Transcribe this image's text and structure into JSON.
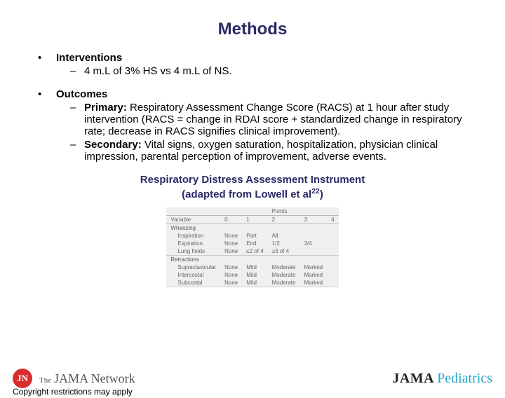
{
  "title": {
    "text": "Methods",
    "color": "#2a2a66",
    "fontsize": 24
  },
  "body_fontsize": 15,
  "bullets": [
    {
      "heading": "Interventions",
      "items": [
        {
          "prefix": "",
          "text": "4 m.L of 3% HS vs 4 m.L of NS."
        }
      ]
    },
    {
      "heading": "Outcomes",
      "items": [
        {
          "prefix": "Primary: ",
          "text": "Respiratory Assessment Change Score (RACS) at 1 hour after study intervention (RACS = change in RDAI score + standardized change in respiratory rate; decrease in RACS signifies clinical improvement)."
        },
        {
          "prefix": "Secondary: ",
          "text": "Vital signs, oxygen saturation, hospitalization, physician clinical impression, parental perception of improvement, adverse events."
        }
      ]
    }
  ],
  "table_caption": {
    "line1": "Respiratory Distress Assessment Instrument",
    "line2_pre": "(adapted from Lowell et al",
    "line2_sup": "22",
    "line2_post": ")",
    "color": "#2a2a66",
    "fontsize": 15
  },
  "rdai_table": {
    "background": "#f0efee",
    "border_color": "#bbbbbb",
    "text_color": "#666666",
    "fontsize": 8,
    "variable_header": "Variable",
    "points_header": "Points",
    "point_cols": [
      "0",
      "1",
      "2",
      "3",
      "4"
    ],
    "sections": [
      {
        "label": "Wheezing",
        "rows": [
          {
            "label": "Inspiration",
            "cells": [
              "None",
              "Part",
              "All",
              "",
              ""
            ]
          },
          {
            "label": "Expiration",
            "cells": [
              "None",
              "End",
              "1/2",
              "3/4",
              ""
            ]
          },
          {
            "label": "Lung fields",
            "cells": [
              "None",
              "≤2 of 4",
              "≥3 of 4",
              "",
              ""
            ]
          }
        ]
      },
      {
        "label": "Retractions",
        "rows": [
          {
            "label": "Supraclavicular",
            "cells": [
              "None",
              "Mild",
              "Moderate",
              "Marked",
              ""
            ]
          },
          {
            "label": "Intercostal",
            "cells": [
              "None",
              "Mild",
              "Moderate",
              "Marked",
              ""
            ]
          },
          {
            "label": "Subcostal",
            "cells": [
              "None",
              "Mild",
              "Moderate",
              "Marked",
              ""
            ]
          }
        ]
      }
    ]
  },
  "footer": {
    "badge_text": "JN",
    "badge_bg": "#d92e2e",
    "network_the": "The",
    "network_name": "JAMA Network",
    "jama": "JAMA",
    "pediatrics": "Pediatrics",
    "ped_color": "#2aa5c9",
    "copyright": "Copyright restrictions may apply"
  }
}
